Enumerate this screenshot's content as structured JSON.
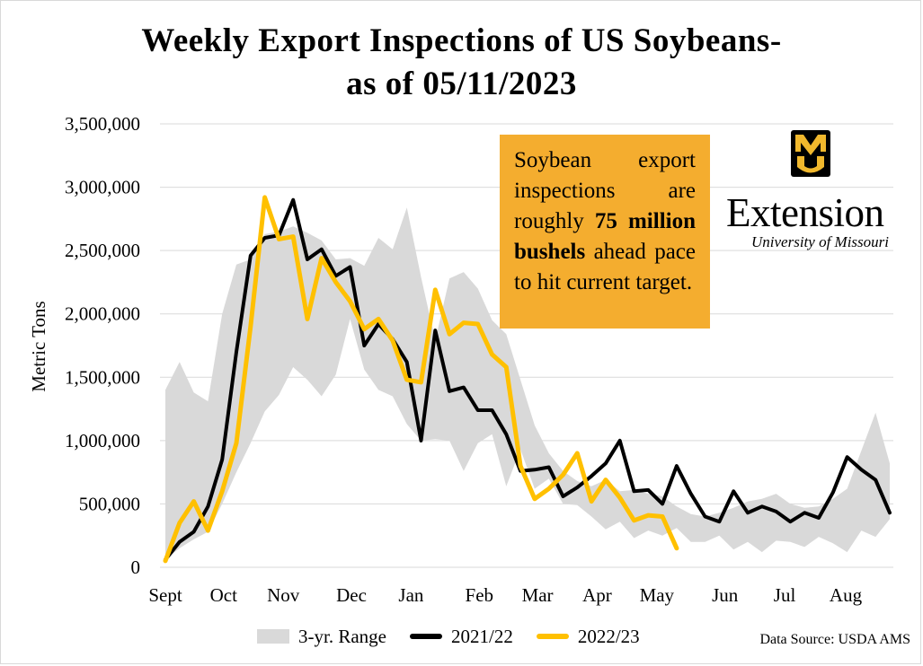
{
  "title_line1": "Weekly Export Inspections of US Soybeans-",
  "title_line2": "as of 05/11/2023",
  "callout": {
    "text_before": "Soybean export inspections are roughly ",
    "bold_text": "75 million bushels",
    "text_after": " ahead pace to hit current target.",
    "background": "#f4ad2f"
  },
  "logo": {
    "wordmark": "Extension",
    "subtitle": "University of Missouri",
    "letter": "MU"
  },
  "source": "Data Source: USDA AMS",
  "legend": [
    {
      "key": "range",
      "label": "3-yr. Range"
    },
    {
      "key": "s2122",
      "label": "2021/22"
    },
    {
      "key": "s2223",
      "label": "2022/23"
    }
  ],
  "colors": {
    "range": "#d9d9d9",
    "s2122": "#000000",
    "s2223": "#ffc000",
    "grid": "#d9d9d9"
  },
  "chart_data": {
    "type": "line",
    "title": "Weekly Export Inspections of US Soybeans- as of 05/11/2023",
    "ylabel": "Metric Tons",
    "xlabel": "",
    "ylim": [
      0,
      3500000
    ],
    "yticks": [
      0,
      500000,
      1000000,
      1500000,
      2000000,
      2500000,
      3000000,
      3500000
    ],
    "ytick_labels": [
      "0",
      "500,000",
      "1,000,000",
      "1,500,000",
      "2,000,000",
      "2,500,000",
      "3,000,000",
      "3,500,000"
    ],
    "weeks": 52,
    "month_labels": [
      {
        "label": "Sept",
        "week": 0
      },
      {
        "label": "Oct",
        "week": 4.1
      },
      {
        "label": "Nov",
        "week": 8.3
      },
      {
        "label": "Dec",
        "week": 13.1
      },
      {
        "label": "Jan",
        "week": 17.3
      },
      {
        "label": "Feb",
        "week": 22.1
      },
      {
        "label": "Mar",
        "week": 26.2
      },
      {
        "label": "Apr",
        "week": 30.4
      },
      {
        "label": "May",
        "week": 34.6
      },
      {
        "label": "Jun",
        "week": 39.4
      },
      {
        "label": "Jul",
        "week": 43.6
      },
      {
        "label": "Aug",
        "week": 47.9
      }
    ],
    "range_upper": [
      1400000,
      1620000,
      1380000,
      1310000,
      2000000,
      2390000,
      2430000,
      2630000,
      2650000,
      2690000,
      2640000,
      2580000,
      2430000,
      2440000,
      2380000,
      2600000,
      2510000,
      2840000,
      2290000,
      1790000,
      2280000,
      2330000,
      2200000,
      1950000,
      1840000,
      1480000,
      1120000,
      900000,
      760000,
      680000,
      640000,
      690000,
      600000,
      610000,
      580000,
      560000,
      480000,
      420000,
      400000,
      430000,
      470000,
      520000,
      540000,
      580000,
      500000,
      470000,
      480000,
      540000,
      620000,
      920000,
      1220000,
      820000
    ],
    "range_lower": [
      60000,
      150000,
      220000,
      280000,
      500000,
      750000,
      980000,
      1230000,
      1360000,
      1580000,
      1480000,
      1350000,
      1520000,
      1960000,
      1560000,
      1400000,
      1350000,
      1130000,
      1000000,
      1010000,
      1000000,
      760000,
      980000,
      1050000,
      640000,
      930000,
      620000,
      700000,
      500000,
      490000,
      400000,
      300000,
      360000,
      230000,
      290000,
      250000,
      310000,
      200000,
      200000,
      250000,
      140000,
      200000,
      120000,
      210000,
      200000,
      160000,
      240000,
      190000,
      120000,
      290000,
      240000,
      380000
    ],
    "series": [
      {
        "name": "2021/22",
        "values": [
          60000,
          200000,
          280000,
          480000,
          850000,
          1700000,
          2460000,
          2600000,
          2620000,
          2900000,
          2430000,
          2510000,
          2300000,
          2370000,
          1750000,
          1920000,
          1800000,
          1620000,
          1000000,
          1870000,
          1390000,
          1420000,
          1240000,
          1240000,
          1050000,
          760000,
          770000,
          790000,
          560000,
          630000,
          720000,
          820000,
          1000000,
          600000,
          610000,
          500000,
          800000,
          580000,
          400000,
          360000,
          600000,
          430000,
          480000,
          440000,
          360000,
          430000,
          390000,
          590000,
          870000,
          770000,
          690000,
          430000
        ]
      },
      {
        "name": "2022/23",
        "values": [
          50000,
          350000,
          520000,
          290000,
          600000,
          980000,
          1900000,
          2920000,
          2590000,
          2610000,
          1960000,
          2440000,
          2250000,
          2100000,
          1880000,
          1960000,
          1790000,
          1480000,
          1460000,
          2190000,
          1840000,
          1930000,
          1920000,
          1680000,
          1580000,
          800000,
          540000,
          620000,
          730000,
          900000,
          520000,
          690000,
          550000,
          370000,
          410000,
          400000,
          150000
        ]
      }
    ]
  }
}
